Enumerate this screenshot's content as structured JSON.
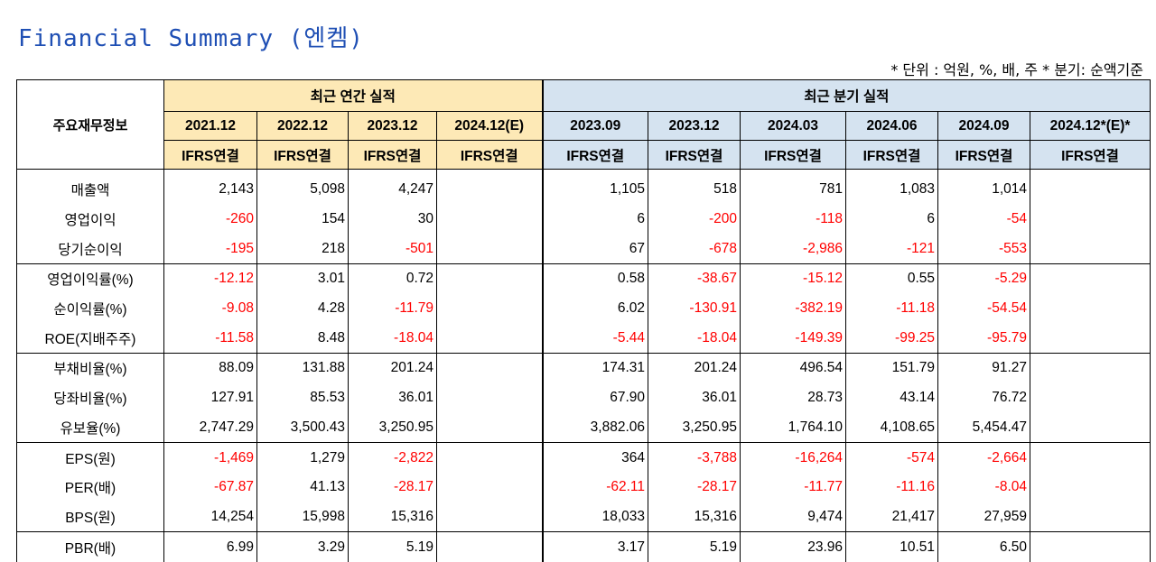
{
  "title": "Financial Summary (엔켐)",
  "unit_note": "* 단위 : 억원, %, 배, 주    * 분기: 순액기준",
  "header": {
    "main_label": "주요재무정보",
    "annual_label": "최근 연간 실적",
    "quarter_label": "최근 분기 실적",
    "periods": [
      "2021.12",
      "2022.12",
      "2023.12",
      "2024.12(E)",
      "2023.09",
      "2023.12",
      "2024.03",
      "2024.06",
      "2024.09",
      "2024.12*(E)*"
    ],
    "basis": [
      "IFRS연결",
      "IFRS연결",
      "IFRS연결",
      "IFRS연결",
      "IFRS연결",
      "IFRS연결",
      "IFRS연결",
      "IFRS연결",
      "IFRS연결",
      "IFRS연결"
    ]
  },
  "rows": [
    {
      "label": "매출액",
      "values": [
        "2,143",
        "5,098",
        "4,247",
        "",
        "1,105",
        "518",
        "781",
        "1,083",
        "1,014",
        ""
      ]
    },
    {
      "label": "영업이익",
      "values": [
        "-260",
        "154",
        "30",
        "",
        "6",
        "-200",
        "-118",
        "6",
        "-54",
        ""
      ]
    },
    {
      "label": "당기순이익",
      "values": [
        "-195",
        "218",
        "-501",
        "",
        "67",
        "-678",
        "-2,986",
        "-121",
        "-553",
        ""
      ]
    },
    {
      "label": "영업이익률(%)",
      "values": [
        "-12.12",
        "3.01",
        "0.72",
        "",
        "0.58",
        "-38.67",
        "-15.12",
        "0.55",
        "-5.29",
        ""
      ]
    },
    {
      "label": "순이익률(%)",
      "values": [
        "-9.08",
        "4.28",
        "-11.79",
        "",
        "6.02",
        "-130.91",
        "-382.19",
        "-11.18",
        "-54.54",
        ""
      ]
    },
    {
      "label": "ROE(지배주주)",
      "values": [
        "-11.58",
        "8.48",
        "-18.04",
        "",
        "-5.44",
        "-18.04",
        "-149.39",
        "-99.25",
        "-95.79",
        ""
      ]
    },
    {
      "label": "부채비율(%)",
      "values": [
        "88.09",
        "131.88",
        "201.24",
        "",
        "174.31",
        "201.24",
        "496.54",
        "151.79",
        "91.27",
        ""
      ]
    },
    {
      "label": "당좌비율(%)",
      "values": [
        "127.91",
        "85.53",
        "36.01",
        "",
        "67.90",
        "36.01",
        "28.73",
        "43.14",
        "76.72",
        ""
      ]
    },
    {
      "label": "유보율(%)",
      "values": [
        "2,747.29",
        "3,500.43",
        "3,250.95",
        "",
        "3,882.06",
        "3,250.95",
        "1,764.10",
        "4,108.65",
        "5,454.47",
        ""
      ]
    },
    {
      "label": "EPS(원)",
      "values": [
        "-1,469",
        "1,279",
        "-2,822",
        "",
        "364",
        "-3,788",
        "-16,264",
        "-574",
        "-2,664",
        ""
      ]
    },
    {
      "label": "PER(배)",
      "values": [
        "-67.87",
        "41.13",
        "-28.17",
        "",
        "-62.11",
        "-28.17",
        "-11.77",
        "-11.16",
        "-8.04",
        ""
      ]
    },
    {
      "label": "BPS(원)",
      "values": [
        "14,254",
        "15,998",
        "15,316",
        "",
        "18,033",
        "15,316",
        "9,474",
        "21,417",
        "27,959",
        ""
      ]
    },
    {
      "label": "PBR(배)",
      "values": [
        "6.99",
        "3.29",
        "5.19",
        "",
        "3.17",
        "5.19",
        "23.96",
        "10.51",
        "6.50",
        ""
      ]
    }
  ],
  "colors": {
    "title": "#1f4fb4",
    "annual_header_bg": "#fde9b6",
    "quarter_header_bg": "#d5e3f0",
    "negative": "#ff0000"
  }
}
